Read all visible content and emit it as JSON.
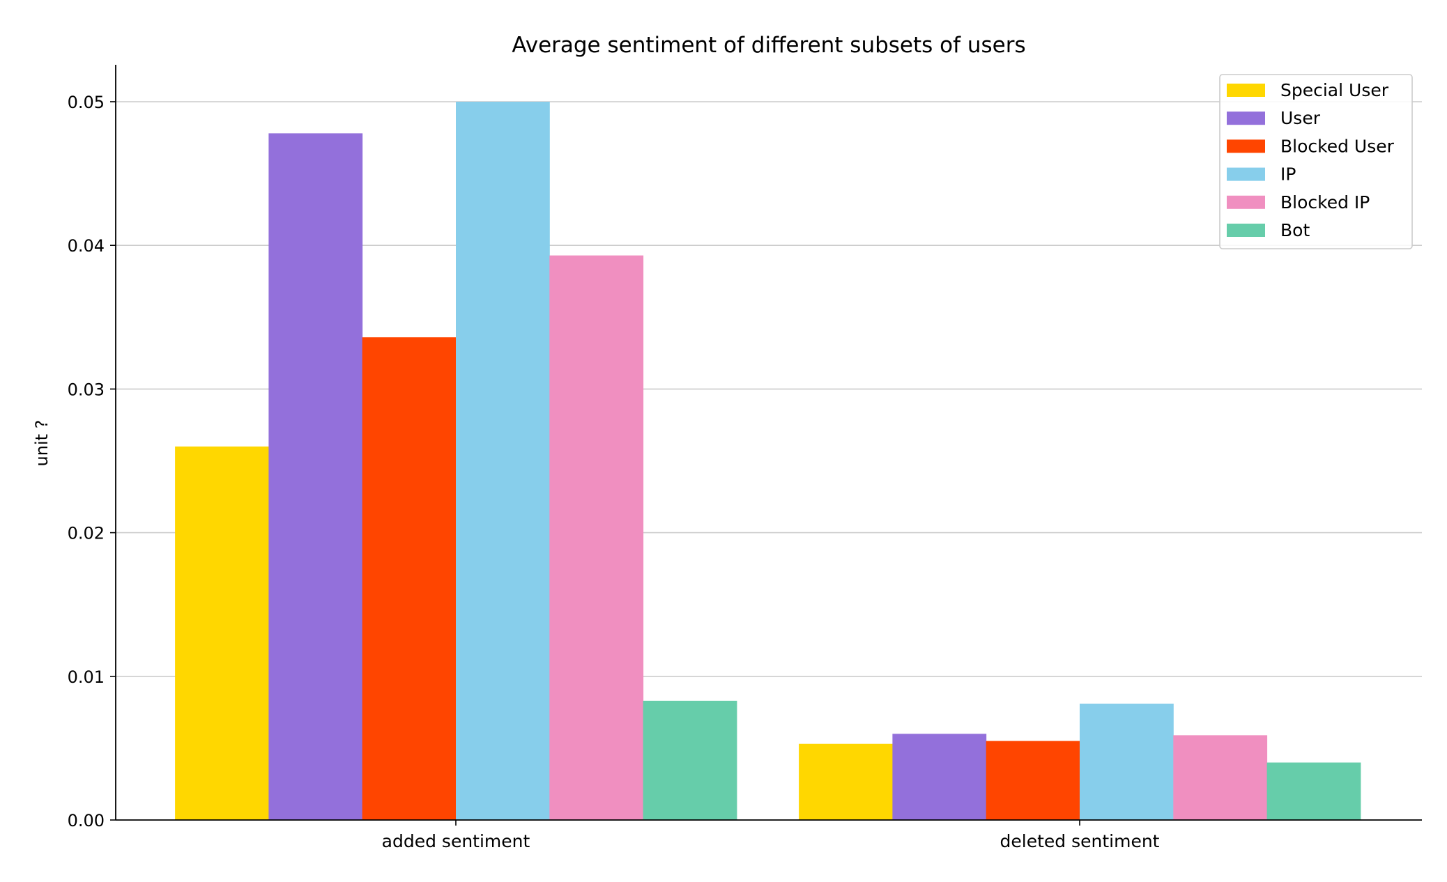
{
  "chart_data": {
    "type": "bar",
    "title": "Average sentiment of different subsets of users",
    "xlabel": "",
    "ylabel": "unit ?",
    "categories": [
      "added sentiment",
      "deleted sentiment"
    ],
    "ylim": [
      0,
      0.0525
    ],
    "yticks": [
      "0.00",
      "0.01",
      "0.02",
      "0.03",
      "0.04",
      "0.05"
    ],
    "grid": "horizontal",
    "legend_position": "top-right",
    "series": [
      {
        "name": "Special User",
        "color": "#FFD700",
        "values": [
          0.026,
          0.0053
        ]
      },
      {
        "name": "User",
        "color": "#9370DB",
        "values": [
          0.0478,
          0.006
        ]
      },
      {
        "name": "Blocked User",
        "color": "#FF4500",
        "values": [
          0.0336,
          0.0055
        ]
      },
      {
        "name": "IP",
        "color": "#87CEEB",
        "values": [
          0.05,
          0.0081
        ]
      },
      {
        "name": "Blocked IP",
        "color": "#F08FC0",
        "values": [
          0.0393,
          0.0059
        ]
      },
      {
        "name": "Bot",
        "color": "#66CDAA",
        "values": [
          0.0083,
          0.004
        ]
      }
    ]
  }
}
